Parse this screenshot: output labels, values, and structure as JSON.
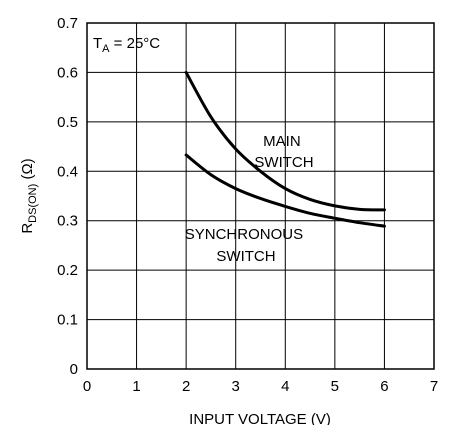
{
  "chart_data": {
    "type": "line",
    "title": "",
    "xlabel": "INPUT VOLTAGE (V)",
    "ylabel": "R_DS(ON) (Ω)",
    "ylabel_parts": {
      "main": "R",
      "sub": "DS(ON)",
      "unit": " (Ω)"
    },
    "xlim": [
      0,
      7
    ],
    "ylim": [
      0,
      0.7
    ],
    "xticks": [
      "0",
      "1",
      "2",
      "3",
      "4",
      "5",
      "6",
      "7"
    ],
    "yticks": [
      "0",
      "0.1",
      "0.2",
      "0.3",
      "0.4",
      "0.5",
      "0.6",
      "0.7"
    ],
    "grid": true,
    "condition": {
      "main": "T",
      "sub": "A",
      "rest": " = 25°C"
    },
    "series": [
      {
        "name": "MAIN SWITCH",
        "label_lines": [
          "MAIN",
          "SWITCH"
        ],
        "x": [
          2,
          2.5,
          3,
          3.5,
          4,
          4.5,
          5,
          5.5,
          6
        ],
        "y": [
          0.6,
          0.51,
          0.445,
          0.4,
          0.365,
          0.343,
          0.33,
          0.323,
          0.322
        ]
      },
      {
        "name": "SYNCHRONOUS SWITCH",
        "label_lines": [
          "SYNCHRONOUS",
          "SWITCH"
        ],
        "x": [
          2,
          2.5,
          3,
          3.5,
          4,
          4.5,
          5,
          5.5,
          6
        ],
        "y": [
          0.433,
          0.393,
          0.365,
          0.345,
          0.329,
          0.315,
          0.305,
          0.296,
          0.289
        ]
      }
    ]
  }
}
